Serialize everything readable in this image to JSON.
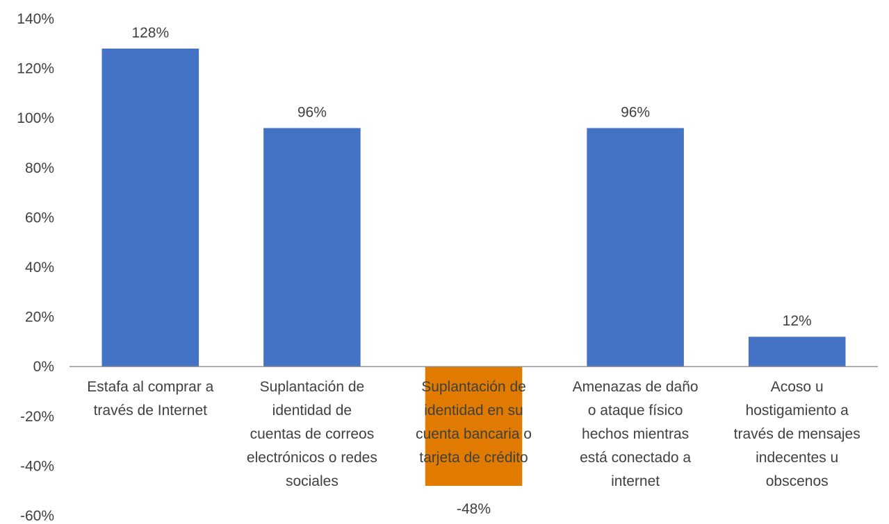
{
  "chart_data": {
    "type": "bar",
    "categories": [
      [
        "Estafa al comprar a",
        "través de Internet"
      ],
      [
        "Suplantación de",
        "identidad de",
        "cuentas de correos",
        "electrónicos o redes",
        "sociales"
      ],
      [
        "Suplantación de",
        "identidad en su",
        "cuenta bancaria o",
        "tarjeta de crédito"
      ],
      [
        "Amenazas de daño",
        "o ataque físico",
        "hechos mientras",
        "está conectado a",
        "internet"
      ],
      [
        "Acoso u",
        "hostigamiento a",
        "través de mensajes",
        "indecentes u",
        "obscenos"
      ]
    ],
    "values": [
      128,
      96,
      -48,
      96,
      12
    ],
    "value_labels": [
      "128%",
      "96%",
      "-48%",
      "96%",
      "12%"
    ],
    "bar_colors": [
      "#4472C4",
      "#4472C4",
      "#E07B00",
      "#4472C4",
      "#4472C4"
    ],
    "ylim": [
      -60,
      140
    ],
    "yticks": [
      140,
      120,
      100,
      80,
      60,
      40,
      20,
      0,
      -20,
      -40,
      -60
    ],
    "ytick_labels": [
      "140%",
      "120%",
      "100%",
      "80%",
      "60%",
      "40%",
      "20%",
      "0%",
      "-20%",
      "-40%",
      "-60%"
    ],
    "grid": false,
    "title": "",
    "xlabel": "",
    "ylabel": ""
  }
}
